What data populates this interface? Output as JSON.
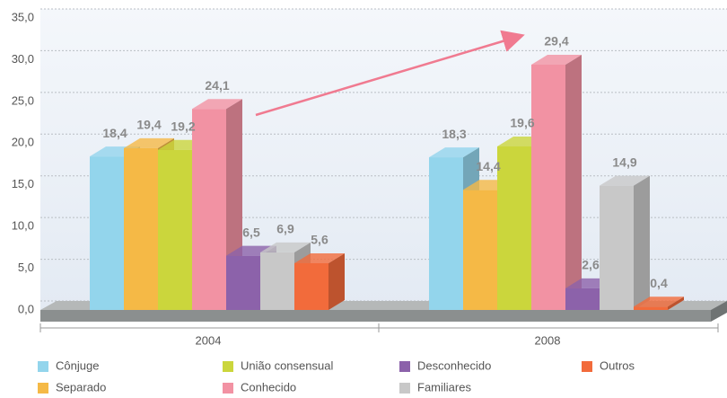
{
  "chart_data": {
    "type": "bar3d",
    "categories": [
      "2004",
      "2008"
    ],
    "series": [
      {
        "name": "Cônjuge",
        "color": "#93d5ec",
        "values": [
          18.4,
          18.3
        ],
        "value_labels": [
          "18,4",
          "18,3"
        ]
      },
      {
        "name": "Separado",
        "color": "#f5b946",
        "values": [
          19.4,
          14.4
        ],
        "value_labels": [
          "19,4",
          "14,4"
        ]
      },
      {
        "name": "União consensual",
        "color": "#cbd63c",
        "values": [
          19.2,
          19.6
        ],
        "value_labels": [
          "19,2",
          "19,6"
        ]
      },
      {
        "name": "Conhecido",
        "color": "#f292a3",
        "values": [
          24.1,
          29.4
        ],
        "value_labels": [
          "24,1",
          "29,4"
        ]
      },
      {
        "name": "Desconhecido",
        "color": "#8c62aa",
        "values": [
          6.5,
          2.6
        ],
        "value_labels": [
          "6,5",
          "2,6"
        ]
      },
      {
        "name": "Familiares",
        "color": "#c8c8c8",
        "values": [
          6.9,
          14.9
        ],
        "value_labels": [
          "6,9",
          "14,9"
        ]
      },
      {
        "name": "Outros",
        "color": "#f26b3b",
        "values": [
          5.6,
          0.4
        ],
        "value_labels": [
          "5,6",
          "0,4"
        ]
      }
    ],
    "ylim": [
      0,
      35
    ],
    "yticks": [
      {
        "value": 0,
        "label": "0,0"
      },
      {
        "value": 5,
        "label": "5,0"
      },
      {
        "value": 10,
        "label": "10,0"
      },
      {
        "value": 15,
        "label": "15,0"
      },
      {
        "value": 20,
        "label": "20,0"
      },
      {
        "value": 25,
        "label": "25,0"
      },
      {
        "value": 30,
        "label": "30,0"
      },
      {
        "value": 35,
        "label": "35,0"
      }
    ],
    "grid": true
  }
}
